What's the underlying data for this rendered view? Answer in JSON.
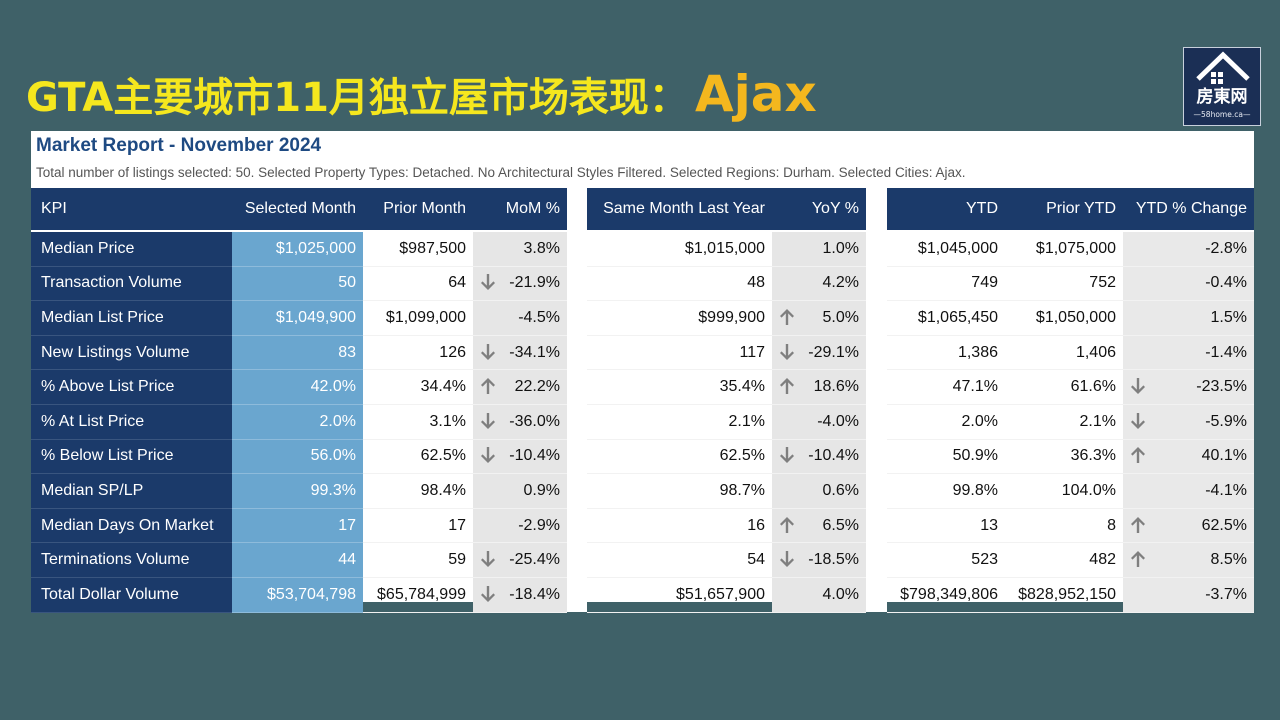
{
  "slide": {
    "title": "GTA主要城市11月独立屋市场表现：",
    "city": "Ajax"
  },
  "logo": {
    "text": "房東网",
    "url": "—58home.ca—"
  },
  "report": {
    "title": "Market Report - November 2024",
    "subtitle": "Total number of listings selected: 50. Selected Property Types: Detached. No Architectural Styles Filtered. Selected Regions: Durham. Selected Cities: Ajax."
  },
  "colors": {
    "header_bg": "#1b3a6a",
    "selected_month_bg": "#6aa6cf",
    "pct_bg": "#e6e6e6",
    "arrow": "#7f7f7f",
    "title_yellow": "#f5e71e",
    "city_orange": "#f4b71e",
    "slide_bg": "#3f6168"
  },
  "chart_data": {
    "type": "table",
    "columns": [
      "KPI",
      "Selected Month",
      "Prior Month",
      "MoM %",
      "Same Month Last Year",
      "YoY %",
      "YTD",
      "Prior YTD",
      "YTD % Change"
    ],
    "rows": [
      {
        "kpi": "Median Price",
        "sel": "$1,025,000",
        "prior": "$987,500",
        "mom": "3.8%",
        "mom_arrow": "",
        "same": "$1,015,000",
        "yoy": "1.0%",
        "yoy_arrow": "",
        "ytd": "$1,045,000",
        "prior_ytd": "$1,075,000",
        "ytd_chg": "-2.8%",
        "ytd_arrow": ""
      },
      {
        "kpi": "Transaction Volume",
        "sel": "50",
        "prior": "64",
        "mom": "-21.9%",
        "mom_arrow": "down",
        "same": "48",
        "yoy": "4.2%",
        "yoy_arrow": "",
        "ytd": "749",
        "prior_ytd": "752",
        "ytd_chg": "-0.4%",
        "ytd_arrow": ""
      },
      {
        "kpi": "Median List Price",
        "sel": "$1,049,900",
        "prior": "$1,099,000",
        "mom": "-4.5%",
        "mom_arrow": "",
        "same": "$999,900",
        "yoy": "5.0%",
        "yoy_arrow": "up",
        "ytd": "$1,065,450",
        "prior_ytd": "$1,050,000",
        "ytd_chg": "1.5%",
        "ytd_arrow": ""
      },
      {
        "kpi": "New Listings Volume",
        "sel": "83",
        "prior": "126",
        "mom": "-34.1%",
        "mom_arrow": "down",
        "same": "117",
        "yoy": "-29.1%",
        "yoy_arrow": "down",
        "ytd": "1,386",
        "prior_ytd": "1,406",
        "ytd_chg": "-1.4%",
        "ytd_arrow": ""
      },
      {
        "kpi": "% Above List Price",
        "sel": "42.0%",
        "prior": "34.4%",
        "mom": "22.2%",
        "mom_arrow": "up",
        "same": "35.4%",
        "yoy": "18.6%",
        "yoy_arrow": "up",
        "ytd": "47.1%",
        "prior_ytd": "61.6%",
        "ytd_chg": "-23.5%",
        "ytd_arrow": "down"
      },
      {
        "kpi": "% At List Price",
        "sel": "2.0%",
        "prior": "3.1%",
        "mom": "-36.0%",
        "mom_arrow": "down",
        "same": "2.1%",
        "yoy": "-4.0%",
        "yoy_arrow": "",
        "ytd": "2.0%",
        "prior_ytd": "2.1%",
        "ytd_chg": "-5.9%",
        "ytd_arrow": "down"
      },
      {
        "kpi": "% Below List Price",
        "sel": "56.0%",
        "prior": "62.5%",
        "mom": "-10.4%",
        "mom_arrow": "down",
        "same": "62.5%",
        "yoy": "-10.4%",
        "yoy_arrow": "down",
        "ytd": "50.9%",
        "prior_ytd": "36.3%",
        "ytd_chg": "40.1%",
        "ytd_arrow": "up"
      },
      {
        "kpi": "Median SP/LP",
        "sel": "99.3%",
        "prior": "98.4%",
        "mom": "0.9%",
        "mom_arrow": "",
        "same": "98.7%",
        "yoy": "0.6%",
        "yoy_arrow": "",
        "ytd": "99.8%",
        "prior_ytd": "104.0%",
        "ytd_chg": "-4.1%",
        "ytd_arrow": ""
      },
      {
        "kpi": "Median Days On Market",
        "sel": "17",
        "prior": "17",
        "mom": "-2.9%",
        "mom_arrow": "",
        "same": "16",
        "yoy": "6.5%",
        "yoy_arrow": "up",
        "ytd": "13",
        "prior_ytd": "8",
        "ytd_chg": "62.5%",
        "ytd_arrow": "up"
      },
      {
        "kpi": "Terminations Volume",
        "sel": "44",
        "prior": "59",
        "mom": "-25.4%",
        "mom_arrow": "down",
        "same": "54",
        "yoy": "-18.5%",
        "yoy_arrow": "down",
        "ytd": "523",
        "prior_ytd": "482",
        "ytd_chg": "8.5%",
        "ytd_arrow": "up"
      },
      {
        "kpi": "Total Dollar Volume",
        "sel": "$53,704,798",
        "prior": "$65,784,999",
        "mom": "-18.4%",
        "mom_arrow": "down",
        "same": "$51,657,900",
        "yoy": "4.0%",
        "yoy_arrow": "",
        "ytd": "$798,349,806",
        "prior_ytd": "$828,952,150",
        "ytd_chg": "-3.7%",
        "ytd_arrow": ""
      }
    ]
  }
}
